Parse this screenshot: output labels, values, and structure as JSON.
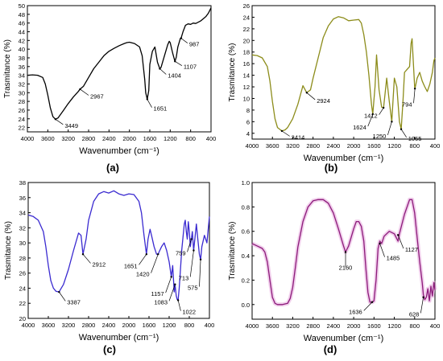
{
  "figure": {
    "panel_labels": [
      "(a)",
      "(b)",
      "(c)",
      "(d)"
    ]
  },
  "chart_data": [
    {
      "type": "line",
      "panel": "(a)",
      "xlabel": "Wavenumber (cm⁻¹)",
      "ylabel": "Trasmitance (%)",
      "xlim": [
        4000,
        400
      ],
      "ylim": [
        21,
        50
      ],
      "x_ticks": [
        4000,
        3600,
        3200,
        2800,
        2400,
        2000,
        1600,
        1200,
        800,
        400
      ],
      "y_ticks": [
        22,
        24,
        26,
        28,
        30,
        32,
        34,
        36,
        38,
        40,
        42,
        44,
        46,
        48,
        50
      ],
      "color": "#000000",
      "series": [
        {
          "x": [
            4000,
            3900,
            3800,
            3700,
            3650,
            3600,
            3550,
            3500,
            3449,
            3400,
            3300,
            3200,
            3100,
            3000,
            2967,
            2900,
            2800,
            2700,
            2600,
            2500,
            2400,
            2300,
            2200,
            2100,
            2050,
            2000,
            1900,
            1800,
            1750,
            1700,
            1680,
            1651,
            1620,
            1600,
            1550,
            1500,
            1450,
            1404,
            1380,
            1300,
            1250,
            1220,
            1200,
            1150,
            1107,
            1080,
            1050,
            1000,
            987,
            950,
            900,
            850,
            800,
            750,
            700,
            650,
            600,
            550,
            500,
            450,
            420,
            400
          ],
          "y": [
            34,
            34.1,
            34,
            33.5,
            32,
            29.5,
            26.5,
            24.5,
            23.9,
            24.2,
            25.8,
            27.5,
            29,
            30.3,
            30.8,
            31.5,
            33.5,
            35.5,
            37,
            38.5,
            39.5,
            40.2,
            40.8,
            41.3,
            41.5,
            41.6,
            41.3,
            40.5,
            38.5,
            33,
            30,
            28.5,
            30.5,
            36.5,
            39.5,
            40.5,
            37,
            35.5,
            35.8,
            39,
            41,
            41.8,
            41.5,
            39,
            37.2,
            38.2,
            40.5,
            42.5,
            42.5,
            44,
            45.5,
            45.8,
            45.7,
            46,
            45.9,
            46.2,
            46.5,
            47,
            47.5,
            48.3,
            49,
            49.5
          ]
        }
      ],
      "annotations": [
        {
          "label": "3449",
          "x": 3449,
          "y": 23.9,
          "tx": 3300,
          "ty": 22.7
        },
        {
          "label": "2967",
          "x": 2967,
          "y": 30.8,
          "tx": 2800,
          "ty": 29.4
        },
        {
          "label": "1651",
          "x": 1651,
          "y": 28.5,
          "tx": 1560,
          "ty": 26.6
        },
        {
          "label": "1404",
          "x": 1404,
          "y": 35.5,
          "tx": 1280,
          "ty": 34.2
        },
        {
          "label": "1107",
          "x": 1107,
          "y": 37.2,
          "tx": 970,
          "ty": 36.2
        },
        {
          "label": "987",
          "x": 987,
          "y": 42.5,
          "tx": 860,
          "ty": 41.4
        }
      ]
    },
    {
      "type": "line",
      "panel": "(b)",
      "xlabel": "Wavenumber (cm⁻¹)",
      "ylabel": "Trasmitance (%)",
      "xlim": [
        4000,
        400
      ],
      "ylim": [
        3,
        26
      ],
      "x_ticks": [
        4000,
        3600,
        3200,
        2800,
        2400,
        2000,
        1600,
        1200,
        800,
        400
      ],
      "y_ticks": [
        4,
        6,
        8,
        10,
        12,
        14,
        16,
        18,
        20,
        22,
        24,
        26
      ],
      "color": "#8c8c1a",
      "series": [
        {
          "x": [
            4000,
            3900,
            3800,
            3700,
            3650,
            3600,
            3550,
            3500,
            3414,
            3350,
            3300,
            3200,
            3100,
            3000,
            2924,
            2850,
            2800,
            2700,
            2600,
            2500,
            2400,
            2300,
            2200,
            2100,
            2000,
            1900,
            1850,
            1800,
            1750,
            1700,
            1650,
            1624,
            1580,
            1550,
            1500,
            1450,
            1412,
            1380,
            1350,
            1300,
            1250,
            1200,
            1150,
            1100,
            1065,
            1030,
            1000,
            950,
            900,
            870,
            850,
            800,
            794,
            750,
            700,
            650,
            600,
            550,
            500,
            450,
            420,
            400
          ],
          "y": [
            17.5,
            17.4,
            17,
            15.5,
            13,
            9.5,
            6.5,
            5,
            4.4,
            4.6,
            5,
            6.5,
            9,
            12.2,
            11,
            11.5,
            13.5,
            17,
            20.5,
            22.5,
            23.7,
            24.1,
            23.9,
            23.4,
            23.5,
            23.6,
            23,
            21,
            18,
            14,
            9,
            7.3,
            12,
            17.5,
            11.5,
            8.5,
            8.4,
            11,
            13.5,
            9.5,
            6,
            13.5,
            12,
            6,
            4.7,
            9.5,
            14.5,
            15,
            15.5,
            19.5,
            20.3,
            12,
            11.7,
            13.5,
            14.5,
            13,
            12,
            11.2,
            12.5,
            14.5,
            16.5,
            17
          ]
        }
      ],
      "annotations": [
        {
          "label": "3414",
          "x": 3414,
          "y": 4.4,
          "tx": 3260,
          "ty": 3.5
        },
        {
          "label": "2924",
          "x": 2924,
          "y": 11,
          "tx": 2760,
          "ty": 9.8
        },
        {
          "label": "1624",
          "x": 1624,
          "y": 7.3,
          "tx": 1720,
          "ty": 5.2
        },
        {
          "label": "1412",
          "x": 1412,
          "y": 8.4,
          "tx": 1500,
          "ty": 7.2
        },
        {
          "label": "1250",
          "x": 1250,
          "y": 6,
          "tx": 1330,
          "ty": 3.7
        },
        {
          "label": "1065",
          "x": 1065,
          "y": 4.7,
          "tx": 960,
          "ty": 3.3
        },
        {
          "label": "794",
          "x": 794,
          "y": 11.7,
          "tx": 820,
          "ty": 9.2
        }
      ]
    },
    {
      "type": "line",
      "panel": "(c)",
      "xlabel": "Wavenumber (cm⁻¹)",
      "ylabel": "Trasmitance (%)",
      "xlim": [
        4000,
        400
      ],
      "ylim": [
        20,
        38
      ],
      "x_ticks": [
        4000,
        3600,
        3200,
        2800,
        2400,
        2000,
        1600,
        1200,
        800,
        400
      ],
      "y_ticks": [
        20,
        22,
        24,
        26,
        28,
        30,
        32,
        34,
        36,
        38
      ],
      "color": "#3a2ad0",
      "series": [
        {
          "x": [
            4000,
            3900,
            3800,
            3700,
            3650,
            3600,
            3550,
            3500,
            3450,
            3387,
            3300,
            3200,
            3100,
            3000,
            2950,
            2912,
            2850,
            2800,
            2700,
            2600,
            2500,
            2400,
            2300,
            2200,
            2100,
            2000,
            1900,
            1800,
            1750,
            1700,
            1651,
            1620,
            1580,
            1550,
            1500,
            1450,
            1420,
            1400,
            1350,
            1300,
            1250,
            1200,
            1157,
            1130,
            1100,
            1083,
            1060,
            1040,
            1022,
            1000,
            950,
            900,
            880,
            860,
            840,
            820,
            800,
            780,
            759,
            740,
            713,
            690,
            660,
            630,
            600,
            575,
            550,
            500,
            450,
            400
          ],
          "y": [
            33.7,
            33.5,
            33,
            31.5,
            29.5,
            27,
            25,
            24,
            23.6,
            23.5,
            24.5,
            26.5,
            29,
            31.3,
            31,
            28.5,
            30.5,
            33,
            35.5,
            36.5,
            36.8,
            36.6,
            36.9,
            36.5,
            36.3,
            36.5,
            36.4,
            35.5,
            34,
            31,
            28.5,
            30.5,
            31.8,
            31,
            29.5,
            28.5,
            28.5,
            28.8,
            29.5,
            30,
            29,
            27.5,
            25.5,
            27,
            23.5,
            24.5,
            23,
            22.5,
            22.4,
            24,
            29,
            32.5,
            33,
            31.5,
            30.5,
            32.8,
            31.5,
            29.5,
            30.5,
            31.5,
            29,
            30.5,
            32.5,
            30.5,
            28.5,
            27.8,
            29.5,
            31,
            30,
            33.5
          ]
        }
      ],
      "annotations": [
        {
          "label": "3387",
          "x": 3387,
          "y": 23.5,
          "tx": 3260,
          "ty": 22.3
        },
        {
          "label": "2912",
          "x": 2912,
          "y": 28.5,
          "tx": 2760,
          "ty": 27.3
        },
        {
          "label": "1651",
          "x": 1651,
          "y": 28.5,
          "tx": 1800,
          "ty": 27.1
        },
        {
          "label": "1420",
          "x": 1420,
          "y": 28.5,
          "tx": 1560,
          "ty": 26
        },
        {
          "label": "1157",
          "x": 1157,
          "y": 25.5,
          "tx": 1270,
          "ty": 23.4
        },
        {
          "label": "1083",
          "x": 1083,
          "y": 24.5,
          "tx": 1200,
          "ty": 22.3
        },
        {
          "label": "1022",
          "x": 1022,
          "y": 22.4,
          "tx": 970,
          "ty": 21
        },
        {
          "label": "759",
          "x": 759,
          "y": 30.5,
          "tx": 840,
          "ty": 28.8
        },
        {
          "label": "713",
          "x": 713,
          "y": 29,
          "tx": 780,
          "ty": 25.5
        },
        {
          "label": "575",
          "x": 575,
          "y": 27.8,
          "tx": 600,
          "ty": 24.2
        }
      ]
    },
    {
      "type": "line",
      "panel": "(d)",
      "xlabel": "Wavenumber (cm⁻¹)",
      "ylabel": "Trasmitance (%)",
      "xlim": [
        4000,
        400
      ],
      "ylim": [
        -0.12,
        1.0
      ],
      "x_ticks": [
        4000,
        3600,
        3200,
        2800,
        2400,
        2000,
        1600,
        1200,
        800,
        400
      ],
      "y_ticks": [
        0.0,
        0.2,
        0.4,
        0.6,
        0.8,
        1.0
      ],
      "y_tick_labels": [
        "0.0",
        "0.2",
        "0.4",
        "0.6",
        "0.8",
        "1.0"
      ],
      "color": "#8c1a7a",
      "series": [
        {
          "x": [
            4000,
            3900,
            3800,
            3750,
            3700,
            3650,
            3600,
            3550,
            3500,
            3400,
            3300,
            3250,
            3200,
            3150,
            3100,
            3000,
            2900,
            2800,
            2700,
            2600,
            2500,
            2400,
            2300,
            2200,
            2160,
            2100,
            2000,
            1950,
            1900,
            1850,
            1800,
            1760,
            1720,
            1680,
            1636,
            1600,
            1560,
            1520,
            1485,
            1450,
            1400,
            1300,
            1200,
            1127,
            1100,
            1000,
            900,
            850,
            800,
            750,
            700,
            650,
            628,
            600,
            570,
            540,
            510,
            480,
            450,
            420,
            400
          ],
          "y": [
            0.5,
            0.48,
            0.46,
            0.43,
            0.35,
            0.2,
            0.06,
            0.01,
            0.0,
            0.0,
            0.01,
            0.05,
            0.14,
            0.3,
            0.47,
            0.68,
            0.8,
            0.85,
            0.86,
            0.86,
            0.83,
            0.75,
            0.62,
            0.48,
            0.43,
            0.48,
            0.62,
            0.68,
            0.68,
            0.64,
            0.52,
            0.3,
            0.1,
            0.02,
            0.02,
            0.03,
            0.2,
            0.46,
            0.52,
            0.5,
            0.56,
            0.6,
            0.58,
            0.52,
            0.58,
            0.74,
            0.86,
            0.86,
            0.75,
            0.55,
            0.35,
            0.18,
            0.08,
            0.04,
            0.06,
            0.13,
            0.03,
            0.15,
            0.07,
            0.18,
            0.12
          ]
        }
      ],
      "annotations": [
        {
          "label": "2160",
          "x": 2160,
          "y": 0.43,
          "tx": 2160,
          "ty": 0.31
        },
        {
          "label": "1636",
          "x": 1636,
          "y": 0.02,
          "tx": 1800,
          "ty": -0.05
        },
        {
          "label": "1485",
          "x": 1485,
          "y": 0.5,
          "tx": 1390,
          "ty": 0.39
        },
        {
          "label": "1127",
          "x": 1127,
          "y": 0.57,
          "tx": 1020,
          "ty": 0.46
        },
        {
          "label": "628",
          "x": 628,
          "y": 0.06,
          "tx": 680,
          "ty": -0.07
        }
      ]
    }
  ]
}
